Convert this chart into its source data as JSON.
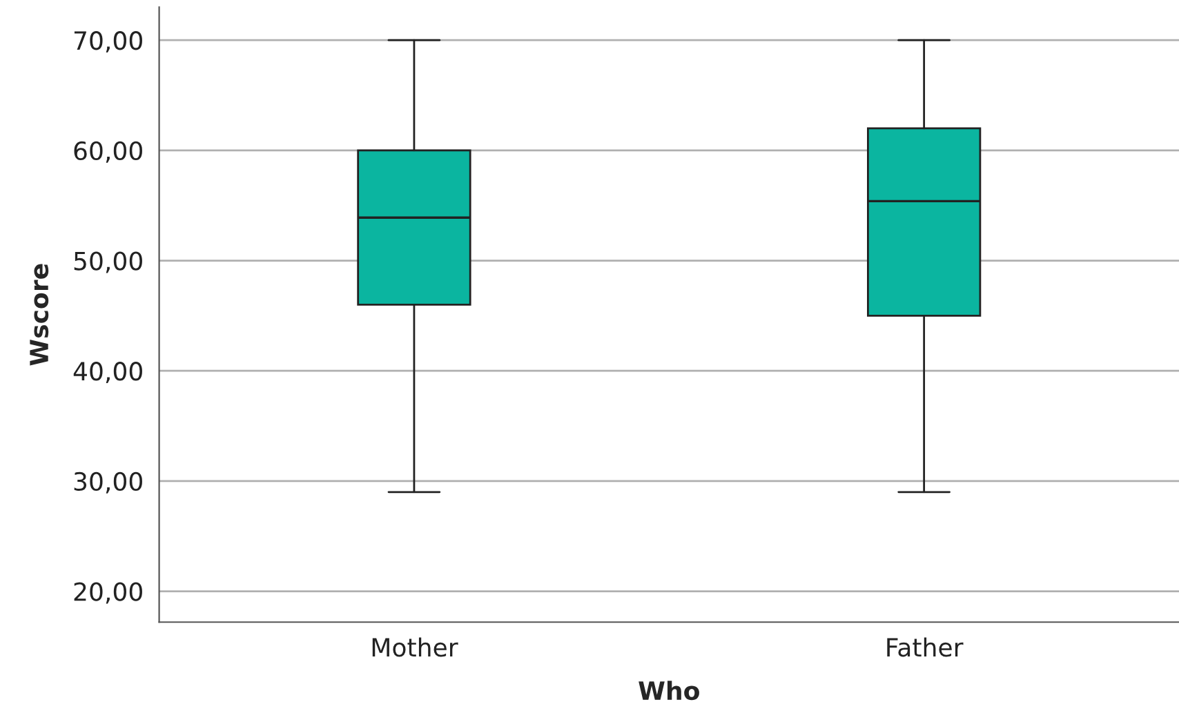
{
  "chart_data": {
    "type": "box",
    "xlabel": "Who",
    "ylabel": "Wscore",
    "categories": [
      "Mother",
      "Father"
    ],
    "boxes": [
      {
        "low": 29,
        "q1": 46,
        "median": 53.9,
        "q3": 60,
        "high": 70
      },
      {
        "low": 29,
        "q1": 45,
        "median": 55.4,
        "q3": 62,
        "high": 70
      }
    ],
    "color": "#0bb5a0",
    "ylim": [
      17.2,
      73
    ],
    "yticks": [
      {
        "value": 20,
        "label": "20,00"
      },
      {
        "value": 30,
        "label": "30,00"
      },
      {
        "value": 40,
        "label": "40,00"
      },
      {
        "value": 50,
        "label": "50,00"
      },
      {
        "value": 60,
        "label": "60,00"
      },
      {
        "value": 70,
        "label": "70,00"
      }
    ],
    "grid": "y",
    "legend": false
  }
}
